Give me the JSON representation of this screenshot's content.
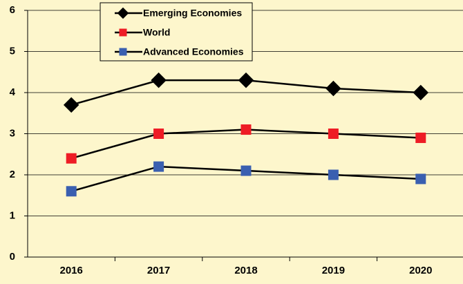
{
  "chart_data": {
    "type": "line",
    "categories": [
      "2016",
      "2017",
      "2018",
      "2019",
      "2020"
    ],
    "series": [
      {
        "name": "Emerging Economies",
        "color": "#000000",
        "marker": "diamond",
        "values": [
          3.7,
          4.3,
          4.3,
          4.1,
          4.0
        ]
      },
      {
        "name": "World",
        "color": "#ee1c25",
        "marker": "square",
        "values": [
          2.4,
          3.0,
          3.1,
          3.0,
          2.9
        ]
      },
      {
        "name": "Advanced Economies",
        "color": "#3a5fb0",
        "marker": "square",
        "values": [
          1.6,
          2.2,
          2.1,
          2.0,
          1.9
        ]
      }
    ],
    "line_color": "#000000",
    "ylim": [
      0,
      6
    ],
    "yticks": [
      0,
      1,
      2,
      3,
      4,
      5,
      6
    ],
    "grid": true,
    "legend": "top"
  }
}
